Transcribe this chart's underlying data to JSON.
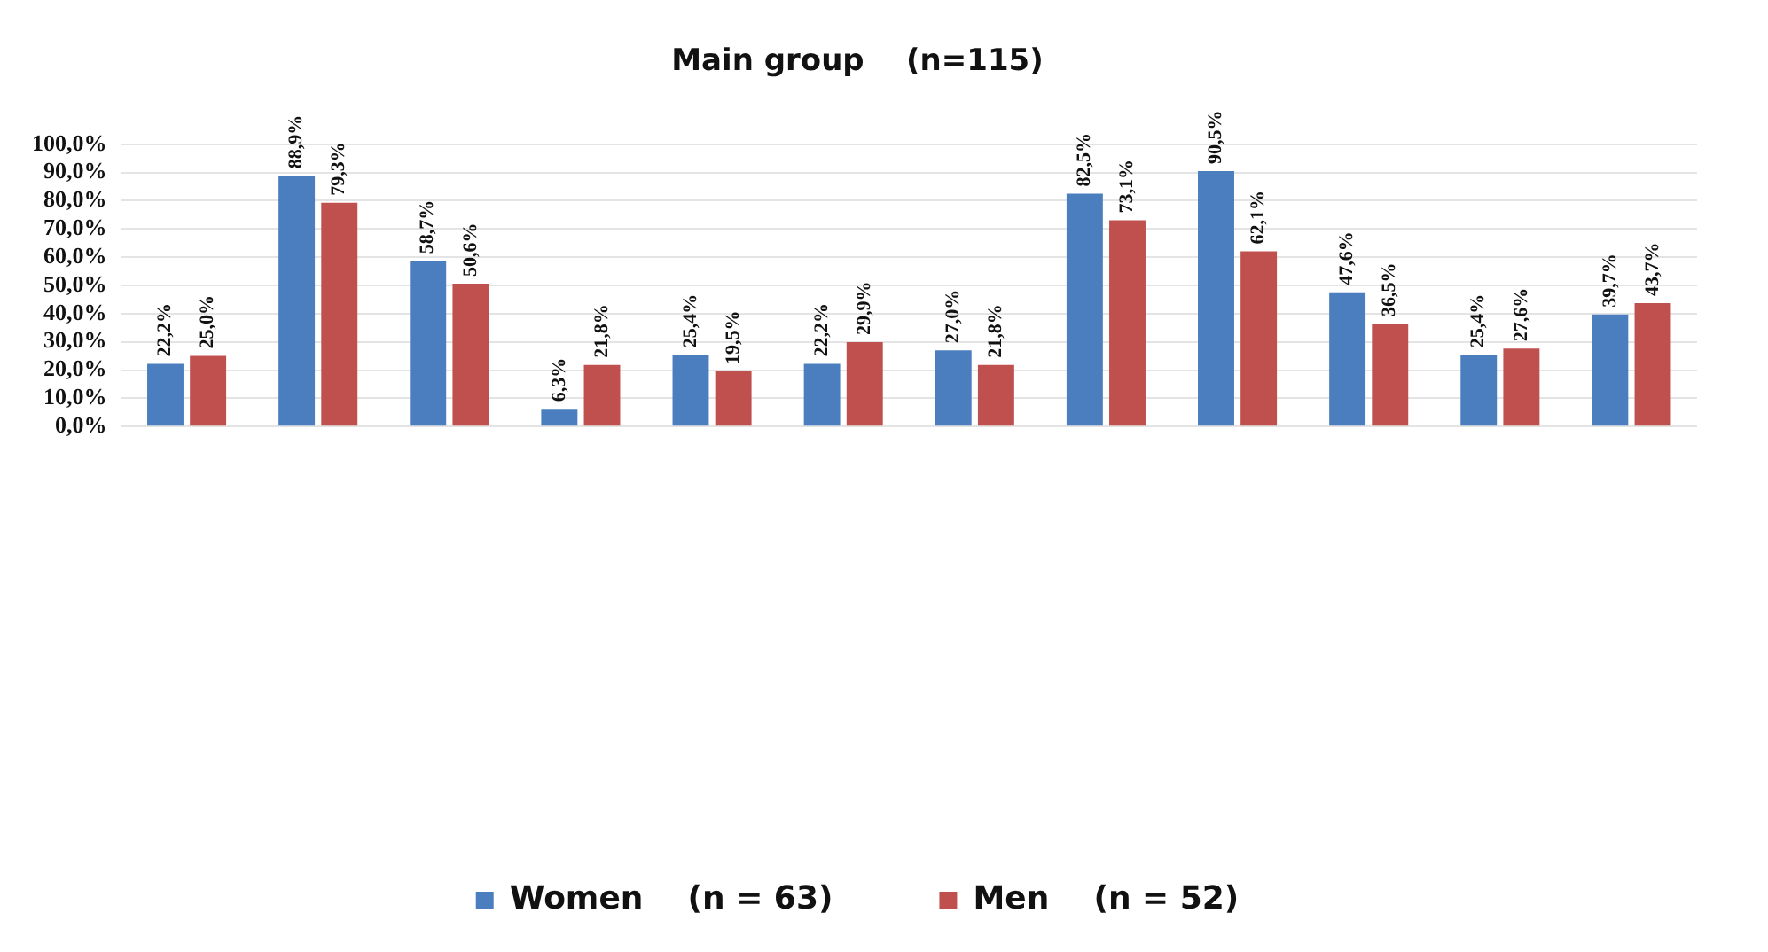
{
  "chart_data": {
    "type": "bar",
    "title": "Main group    (n=115)",
    "categories": [
      null,
      null,
      null,
      null,
      null,
      null,
      null,
      null,
      null,
      null,
      null,
      null
    ],
    "series": [
      {
        "name": "Women    (n = 63)",
        "color": "#4a7ebf",
        "values": [
          22.2,
          88.9,
          58.7,
          6.3,
          25.4,
          22.2,
          27.0,
          82.5,
          90.5,
          47.6,
          25.4,
          39.7
        ],
        "value_labels": [
          "22,2%",
          "88,9%",
          "58,7%",
          "6,3%",
          "25,4%",
          "22,2%",
          "27,0%",
          "82,5%",
          "90,5%",
          "47,6%",
          "25,4%",
          "39,7%"
        ]
      },
      {
        "name": "Men    (n = 52)",
        "color": "#c0504d",
        "values": [
          25.0,
          79.3,
          50.6,
          21.8,
          19.5,
          29.9,
          21.8,
          73.1,
          62.1,
          36.5,
          27.6,
          43.7
        ],
        "value_labels": [
          "25,0%",
          "79,3%",
          "50,6%",
          "21,8%",
          "19,5%",
          "29,9%",
          "21,8%",
          "73,1%",
          "62,1%",
          "36,5%",
          "27,6%",
          "43,7%"
        ]
      }
    ],
    "ylim": [
      0,
      100
    ],
    "yticks": [
      {
        "value": 0,
        "label": "0,0%"
      },
      {
        "value": 10,
        "label": "10,0%"
      },
      {
        "value": 20,
        "label": "20,0%"
      },
      {
        "value": 30,
        "label": "30,0%"
      },
      {
        "value": 40,
        "label": "40,0%"
      },
      {
        "value": 50,
        "label": "50,0%"
      },
      {
        "value": 60,
        "label": "60,0%"
      },
      {
        "value": 70,
        "label": "70,0%"
      },
      {
        "value": 80,
        "label": "80,0%"
      },
      {
        "value": 90,
        "label": "90,0%"
      },
      {
        "value": 100,
        "label": "100,0%"
      }
    ],
    "grid": "y",
    "legend": "bottom"
  }
}
